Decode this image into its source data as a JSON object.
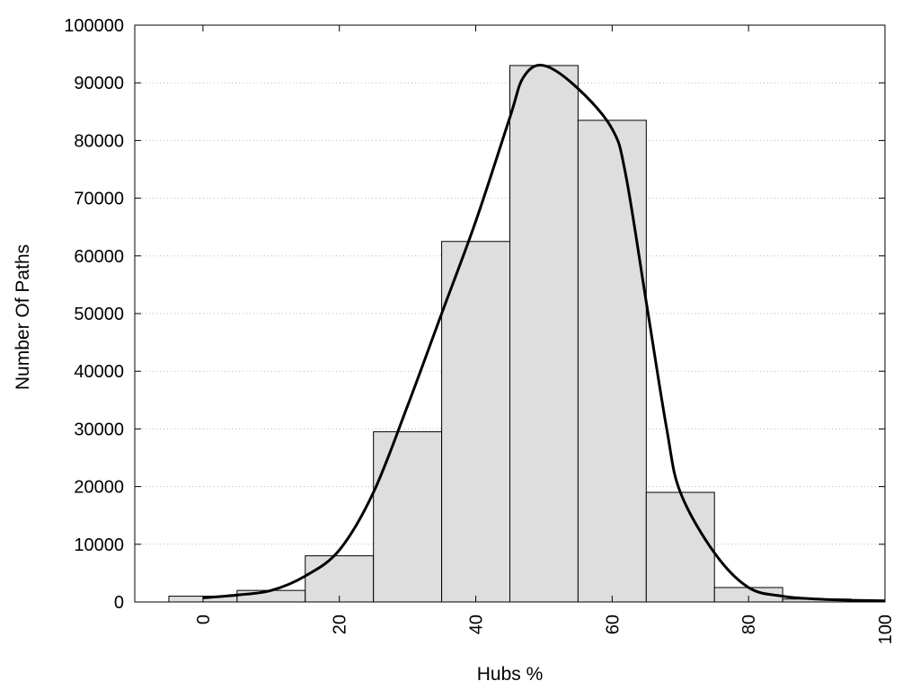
{
  "chart_data": {
    "type": "bar",
    "title": "",
    "xlabel": "Hubs %",
    "ylabel": "Number Of Paths",
    "xlim": [
      -10,
      100
    ],
    "ylim": [
      0,
      100000
    ],
    "x_ticks": [
      0,
      20,
      40,
      60,
      80,
      100
    ],
    "y_ticks": [
      0,
      10000,
      20000,
      30000,
      40000,
      50000,
      60000,
      70000,
      80000,
      90000,
      100000
    ],
    "grid": "horizontal-dotted",
    "bin_width": 10,
    "bins": [
      {
        "x": 0,
        "value": 1000
      },
      {
        "x": 10,
        "value": 2000
      },
      {
        "x": 20,
        "value": 8000
      },
      {
        "x": 30,
        "value": 29500
      },
      {
        "x": 40,
        "value": 62500
      },
      {
        "x": 50,
        "value": 93000
      },
      {
        "x": 60,
        "value": 83500
      },
      {
        "x": 70,
        "value": 19000
      },
      {
        "x": 80,
        "value": 2500
      },
      {
        "x": 90,
        "value": 500
      }
    ],
    "curve": {
      "type": "line",
      "x": [
        0,
        5,
        10,
        15,
        20,
        25,
        30,
        35,
        40,
        45,
        47,
        50,
        55,
        60,
        62,
        65,
        68,
        70,
        75,
        80,
        85,
        90,
        95,
        100
      ],
      "y": [
        700,
        1200,
        2000,
        4500,
        9000,
        19000,
        34000,
        50000,
        66000,
        84000,
        91000,
        93000,
        89000,
        82000,
        74000,
        52000,
        30000,
        19000,
        8500,
        2500,
        1000,
        500,
        300,
        200
      ]
    },
    "colors": {
      "bar_fill": "#dedede",
      "bar_stroke": "#000000",
      "curve": "#000000",
      "grid": "#bbbbbb"
    }
  }
}
